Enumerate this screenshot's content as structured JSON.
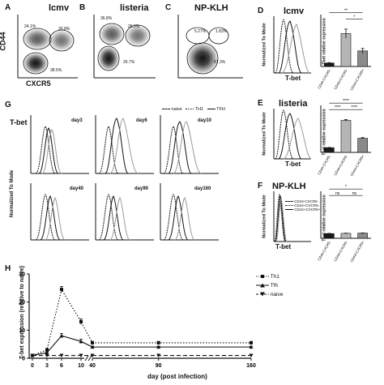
{
  "panels": {
    "A": {
      "letter": "A",
      "title": "lcmv",
      "gates": [
        "24.1%",
        "30.8%",
        "38.5%"
      ]
    },
    "B": {
      "letter": "B",
      "title": "listeria",
      "gates": [
        "36.8%",
        "28.5%",
        "26.7%"
      ]
    },
    "C": {
      "letter": "C",
      "title": "NP-KLH",
      "gates": [
        "5.27%",
        "1.83%",
        "81.3%"
      ]
    },
    "D": {
      "letter": "D",
      "title": "lcmv"
    },
    "E": {
      "letter": "E",
      "title": "listeria"
    },
    "F": {
      "letter": "F",
      "title": "NP-KLH"
    },
    "G": {
      "letter": "G"
    },
    "H": {
      "letter": "H"
    }
  },
  "axes": {
    "cd44": "CD44",
    "cxcr5": "CXCR5",
    "tbet": "T-bet",
    "norm_mode": "Normalized To Mode",
    "tbet_rel": "Tbet relative expression",
    "h_ylabel": "T-bet expression (relative to naive)",
    "h_xlabel": "day (post infection)"
  },
  "bar_categories": [
    "CD44-CXCR5-",
    "CD44+CXCR5-",
    "CD44+CXCR5+"
  ],
  "significance": {
    "D": [
      "**",
      "*"
    ],
    "E": [
      "****",
      "****",
      "****"
    ],
    "F": [
      "*",
      "ns",
      "ns"
    ]
  },
  "legend_f": [
    "CD44-CXCR5-",
    "CD44+CXCR5-",
    "CD44+CXCR5+"
  ],
  "legend_g": [
    "naive",
    "TH1",
    "TFH"
  ],
  "g_days": [
    "day3",
    "day6",
    "day10",
    "day40",
    "day90",
    "day160"
  ],
  "colors": {
    "ink": "#111111",
    "gray": "#9a9a9a",
    "bar_gray": "#b5b5b5",
    "bar_black": "#1a1a1a"
  },
  "chart_data": [
    {
      "type": "bar",
      "panel": "D",
      "categories": [
        "CD44-CXCR5-",
        "CD44+CXCR5-",
        "CD44+CXCR5+"
      ],
      "values": [
        1.0,
        9.5,
        4.5
      ],
      "errors": [
        0.1,
        1.3,
        0.7
      ],
      "ylim": [
        0,
        15
      ]
    },
    {
      "type": "bar",
      "panel": "E",
      "categories": [
        "CD44-CXCR5-",
        "CD44+CXCR5-",
        "CD44+CXCR5+"
      ],
      "values": [
        1.0,
        6.8,
        3.0
      ],
      "errors": [
        0.05,
        0.2,
        0.15
      ],
      "ylim": [
        0,
        10
      ]
    },
    {
      "type": "bar",
      "panel": "F",
      "categories": [
        "CD44-CXCR5-",
        "CD44+CXCR5-",
        "CD44+CXCR5+"
      ],
      "values": [
        1.0,
        1.05,
        1.1
      ],
      "errors": [
        0.05,
        0.05,
        0.05
      ],
      "ylim": [
        0,
        10
      ]
    },
    {
      "type": "line",
      "panel": "H",
      "x": [
        0,
        3,
        6,
        10,
        40,
        90,
        160
      ],
      "xticks": [
        "0",
        "3",
        "6",
        "10",
        "40",
        "90",
        "160"
      ],
      "yticks": [
        "0",
        "10",
        "20",
        "30"
      ],
      "ylim": [
        0,
        30
      ],
      "xlabel": "day (post infection)",
      "ylabel": "T-bet expression (relative to naive)",
      "legend_position": "top-right",
      "series": [
        {
          "name": "Th1",
          "style": "dotted",
          "values": [
            1,
            3,
            24.5,
            13,
            5.5,
            5.5,
            5.5
          ],
          "errors": [
            0,
            0.5,
            1,
            1,
            0.5,
            0.5,
            0.5
          ]
        },
        {
          "name": "Tfh",
          "style": "solid",
          "values": [
            1,
            2,
            8,
            6,
            4,
            4,
            4
          ],
          "errors": [
            0,
            0.3,
            0.8,
            0.8,
            0.3,
            0.3,
            0.3
          ]
        },
        {
          "name": "naive",
          "style": "dashed",
          "values": [
            1,
            1,
            1,
            1,
            1,
            1,
            1
          ],
          "errors": [
            0,
            0,
            0,
            0,
            0,
            0,
            0
          ]
        }
      ]
    }
  ]
}
